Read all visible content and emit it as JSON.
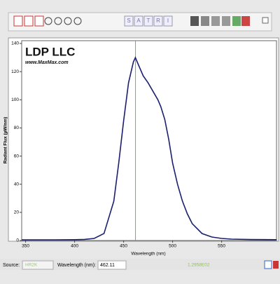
{
  "toolbar": {
    "letters": [
      "S",
      "A",
      "T",
      "R",
      "I"
    ]
  },
  "logo": {
    "title": "LDP LLC",
    "url": "www.MaxMax.com"
  },
  "chart_data": {
    "type": "line",
    "x_label": "Wavelength (nm)",
    "y_label": "Radiant Flux (µW/nm)",
    "x": [
      346,
      380,
      400,
      410,
      420,
      430,
      440,
      445,
      450,
      455,
      460,
      462,
      465,
      470,
      475,
      480,
      485,
      488,
      492,
      496,
      500,
      505,
      510,
      515,
      520,
      530,
      540,
      550,
      560,
      580,
      606
    ],
    "series": [
      {
        "color": "#1a1f6e",
        "values": [
          0.5,
          0.5,
          0.6,
          0.8,
          1.5,
          5,
          28,
          55,
          85,
          112,
          127,
          130,
          125,
          117,
          112,
          106,
          100,
          95,
          86,
          72,
          55,
          40,
          28,
          19,
          12,
          5,
          2.5,
          1.5,
          1,
          0.7,
          0.6
        ]
      }
    ],
    "xlim": [
      346,
      606
    ],
    "xticks": [
      350,
      400,
      450,
      500,
      550
    ],
    "ylim": [
      0,
      142
    ],
    "yticks": [
      0,
      20,
      40,
      60,
      80,
      100,
      120,
      140
    ],
    "cursor_x": 462.11,
    "cursor_color": "#3fcf3f"
  },
  "status": {
    "source_label": "Source:",
    "source": "HR2K",
    "wavelength_label": "Wavelength (nm):",
    "reading": "1.2958E02"
  }
}
